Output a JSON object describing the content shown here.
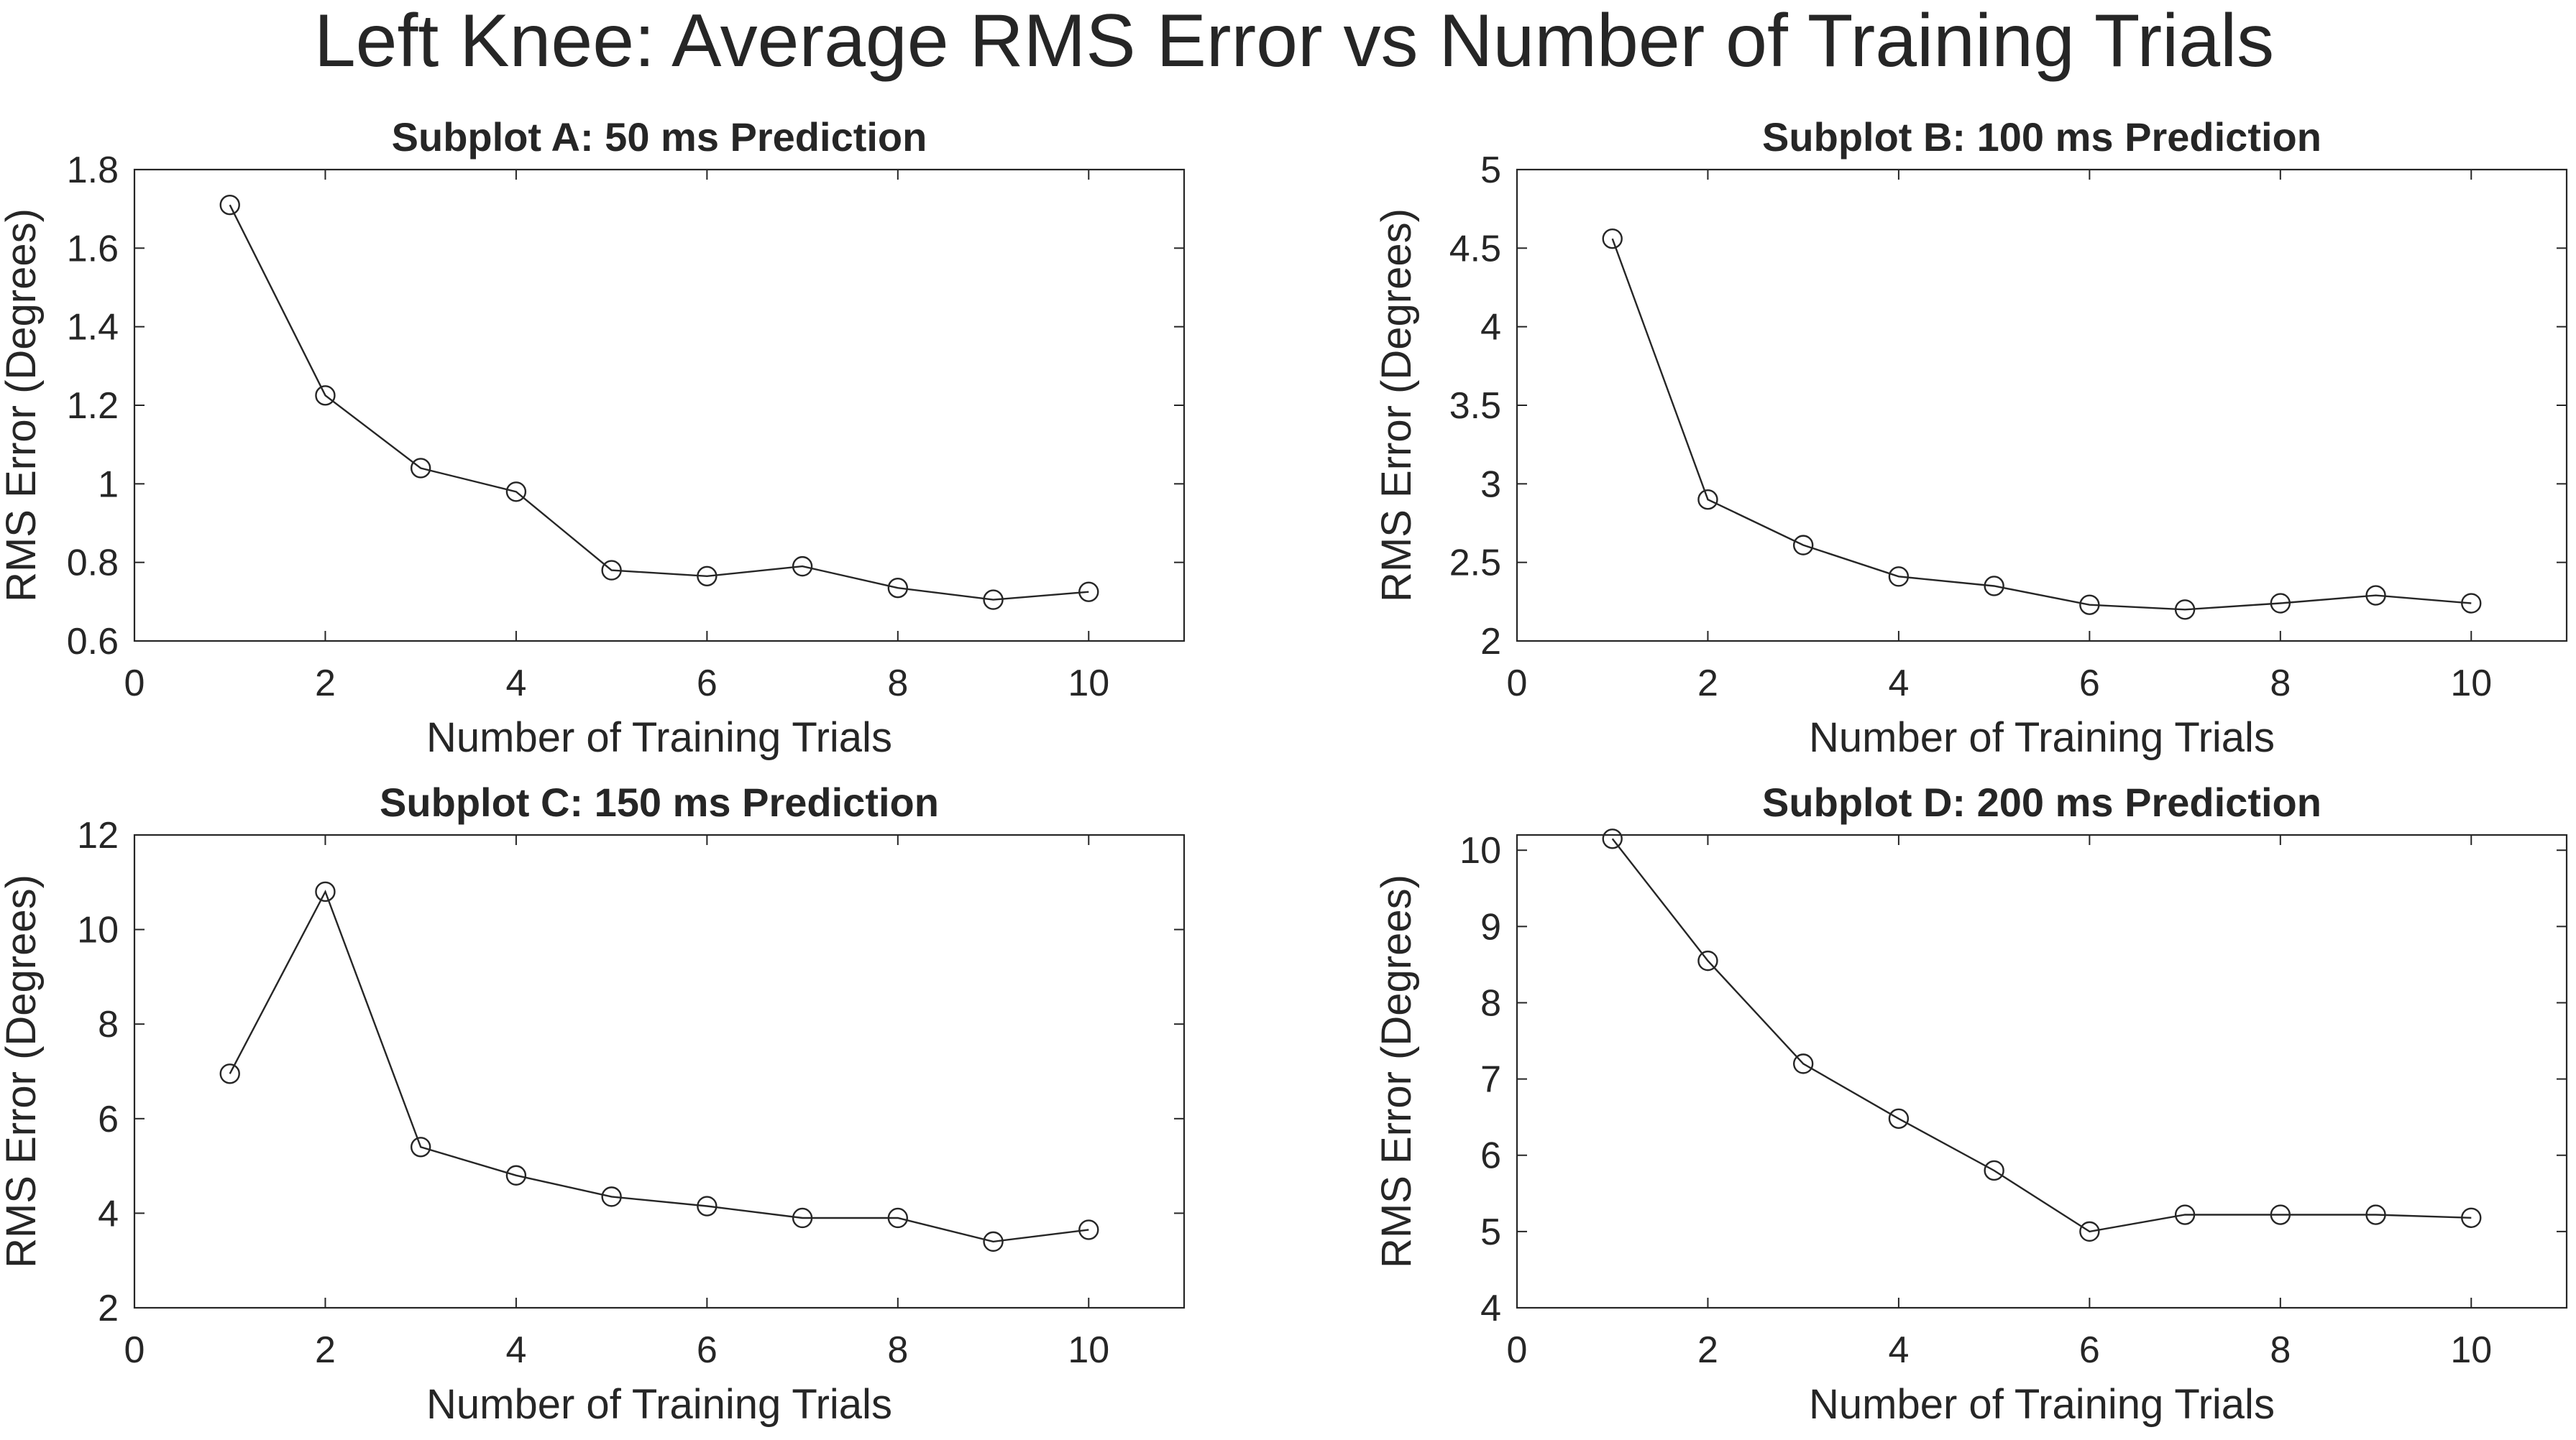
{
  "figure": {
    "title": "Left Knee: Average RMS Error vs Number of Training Trials"
  },
  "chart_data": [
    {
      "type": "line",
      "title": "Subplot A: 50 ms Prediction",
      "xlabel": "Number of Training Trials",
      "ylabel": "RMS Error (Degrees)",
      "xlim": [
        0,
        11
      ],
      "ylim": [
        0.6,
        1.8
      ],
      "xticks": [
        0,
        2,
        4,
        6,
        8,
        10
      ],
      "yticks": [
        0.6,
        0.8,
        1,
        1.2,
        1.4,
        1.6,
        1.8
      ],
      "ytick_labels": [
        "0.6",
        "0.8",
        "1",
        "1.2",
        "1.4",
        "1.6",
        "1.8"
      ],
      "marker": "circle",
      "color": "#262626",
      "x": [
        1,
        2,
        3,
        4,
        5,
        6,
        7,
        8,
        9,
        10
      ],
      "y": [
        1.71,
        1.225,
        1.04,
        0.98,
        0.78,
        0.765,
        0.79,
        0.735,
        0.705,
        0.725
      ]
    },
    {
      "type": "line",
      "title": "Subplot B: 100 ms Prediction",
      "xlabel": "Number of Training Trials",
      "ylabel": "RMS Error (Degrees)",
      "xlim": [
        0,
        11
      ],
      "ylim": [
        2,
        5
      ],
      "xticks": [
        0,
        2,
        4,
        6,
        8,
        10
      ],
      "yticks": [
        2,
        2.5,
        3,
        3.5,
        4,
        4.5,
        5
      ],
      "ytick_labels": [
        "2",
        "2.5",
        "3",
        "3.5",
        "4",
        "4.5",
        "5"
      ],
      "marker": "circle",
      "color": "#262626",
      "x": [
        1,
        2,
        3,
        4,
        5,
        6,
        7,
        8,
        9,
        10
      ],
      "y": [
        4.56,
        2.9,
        2.61,
        2.41,
        2.35,
        2.23,
        2.2,
        2.24,
        2.29,
        2.24
      ]
    },
    {
      "type": "line",
      "title": "Subplot C: 150 ms Prediction",
      "xlabel": "Number of Training Trials",
      "ylabel": "RMS Error (Degrees)",
      "xlim": [
        0,
        11
      ],
      "ylim": [
        2,
        12
      ],
      "xticks": [
        0,
        2,
        4,
        6,
        8,
        10
      ],
      "yticks": [
        2,
        4,
        6,
        8,
        10,
        12
      ],
      "ytick_labels": [
        "2",
        "4",
        "6",
        "8",
        "10",
        "12"
      ],
      "marker": "circle",
      "color": "#262626",
      "x": [
        1,
        2,
        3,
        4,
        5,
        6,
        7,
        8,
        9,
        10
      ],
      "y": [
        6.95,
        10.8,
        5.4,
        4.8,
        4.35,
        4.15,
        3.9,
        3.9,
        3.4,
        3.65
      ]
    },
    {
      "type": "line",
      "title": "Subplot D: 200 ms Prediction",
      "xlabel": "Number of Training Trials",
      "ylabel": "RMS Error (Degrees)",
      "xlim": [
        0,
        11
      ],
      "ylim": [
        4,
        10.2
      ],
      "xticks": [
        0,
        2,
        4,
        6,
        8,
        10
      ],
      "yticks": [
        4,
        5,
        6,
        7,
        8,
        9,
        10
      ],
      "ytick_labels": [
        "4",
        "5",
        "6",
        "7",
        "8",
        "9",
        "10"
      ],
      "marker": "circle",
      "color": "#262626",
      "x": [
        1,
        2,
        3,
        4,
        5,
        6,
        7,
        8,
        9,
        10
      ],
      "y": [
        10.15,
        8.55,
        7.2,
        6.48,
        5.8,
        5.0,
        5.22,
        5.22,
        5.22,
        5.18
      ]
    }
  ]
}
